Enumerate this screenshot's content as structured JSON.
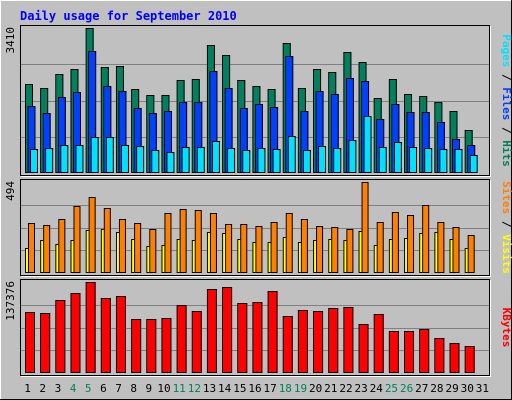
{
  "chart_data": {
    "title": "Daily usage for September 2010",
    "x_labels": [
      "1",
      "2",
      "3",
      "4",
      "5",
      "6",
      "7",
      "8",
      "9",
      "10",
      "11",
      "12",
      "13",
      "14",
      "15",
      "16",
      "17",
      "18",
      "19",
      "20",
      "21",
      "22",
      "23",
      "24",
      "25",
      "26",
      "27",
      "28",
      "29",
      "30",
      "31"
    ],
    "weekend_days": [
      4,
      5,
      11,
      12,
      18,
      19,
      25,
      26
    ],
    "colors": {
      "hits": "#00805c",
      "files": "#0040ff",
      "pages": "#00e0ff",
      "visits": "#ffff00",
      "sites": "#ff8000",
      "kbytes": "#ff0000",
      "title": "#0000ff",
      "weekday_label": "#000000",
      "weekend_label": "#00805c",
      "background": "#c0c0c0"
    },
    "panels": [
      {
        "type": "bar",
        "max_label": "3410",
        "ymax": 3410,
        "legend": [
          {
            "text": "Pages",
            "color": "#00e0ff"
          },
          {
            "text": " / ",
            "color": "#000000"
          },
          {
            "text": "Files",
            "color": "#0040ff"
          },
          {
            "text": " / ",
            "color": "#000000"
          },
          {
            "text": "Hits",
            "color": "#00805c"
          }
        ],
        "series": [
          {
            "name": "Hits",
            "values": [
              2100,
              1990,
              2320,
              2440,
              3410,
              2490,
              2520,
              1980,
              1830,
              1830,
              2190,
              2220,
              3010,
              2770,
              2190,
              2050,
              1970,
              3050,
              2000,
              2450,
              2380,
              2840,
              2600,
              1770,
              2200,
              1850,
              1800,
              1680,
              1460,
              1000
            ]
          },
          {
            "name": "Files",
            "values": [
              1580,
              1410,
              1780,
              1910,
              2870,
              2040,
              1940,
              1540,
              1420,
              1450,
              1680,
              1670,
              2390,
              2010,
              1540,
              1620,
              1560,
              2740,
              1460,
              1940,
              1860,
              2240,
              2170,
              1280,
              1630,
              1440,
              1430,
              1200,
              800,
              660
            ]
          },
          {
            "name": "Pages",
            "values": [
              570,
              580,
              650,
              670,
              850,
              850,
              670,
              640,
              550,
              500,
              610,
              620,
              750,
              590,
              540,
              590,
              570,
              870,
              530,
              630,
              580,
              770,
              1350,
              600,
              730,
              610,
              580,
              560,
              560,
              420
            ]
          }
        ]
      },
      {
        "type": "bar",
        "max_label": "494",
        "ymax": 494,
        "legend": [
          {
            "text": "Sites",
            "color": "#ff8000"
          },
          {
            "text": " / ",
            "color": "#000000"
          },
          {
            "text": "Visits",
            "color": "#ffff00"
          }
        ],
        "series": [
          {
            "name": "Sites",
            "values": [
              272,
              260,
              292,
              366,
              410,
              355,
              292,
              272,
              238,
              325,
              349,
              340,
              325,
              264,
              267,
              255,
              277,
              325,
              292,
              255,
              251,
              238,
              494,
              275,
              332,
              317,
              370,
              279,
              249,
              207
            ]
          },
          {
            "name": "Visits",
            "values": [
              136,
              179,
              157,
              179,
              232,
              238,
              225,
              185,
              149,
              153,
              183,
              179,
              225,
              215,
              185,
              166,
              170,
              198,
              166,
              179,
              183,
              179,
              229,
              153,
              183,
              192,
              217,
              225,
              183,
              138
            ]
          }
        ]
      },
      {
        "type": "bar",
        "max_label": "137376",
        "ymax": 137376,
        "legend": [
          {
            "text": "KBytes",
            "color": "#ff0000"
          }
        ],
        "series": [
          {
            "name": "KBytes",
            "values": [
              92300,
              90600,
              110400,
              121100,
              137376,
              112500,
              115800,
              81400,
              81600,
              82600,
              102400,
              93600,
              127000,
              130000,
              105500,
              106600,
              123100,
              85800,
              94400,
              93300,
              98100,
              100300,
              73900,
              89400,
              63400,
              63400,
              66100,
              52500,
              45900,
              40200
            ]
          }
        ]
      }
    ]
  }
}
